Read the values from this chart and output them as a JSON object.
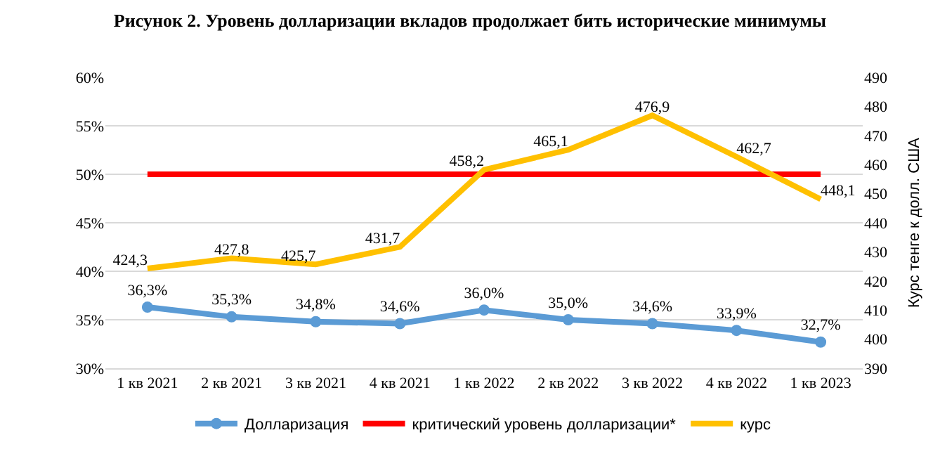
{
  "chart_data": {
    "type": "line",
    "title": "Рисунок 2. Уровень долларизации вкладов продолжает бить исторические минимумы",
    "categories": [
      "1 кв 2021",
      "2 кв 2021",
      "3 кв 2021",
      "4 кв 2021",
      "1 кв 2022",
      "2 кв 2022",
      "3 кв 2022",
      "4 кв 2022",
      "1 кв 2023"
    ],
    "series": [
      {
        "name": "Долларизация",
        "color": "#5b9bd5",
        "marker": "circle",
        "values": [
          36.3,
          35.3,
          34.8,
          34.6,
          36.0,
          35.0,
          34.6,
          33.9,
          32.7
        ],
        "value_labels": [
          "36,3%",
          "35,3%",
          "34,8%",
          "34,6%",
          "36,0%",
          "35,0%",
          "34,6%",
          "33,9%",
          "32,7%"
        ]
      },
      {
        "name": "критический уровень долларизации*",
        "color": "#ff0000",
        "marker": "none",
        "values": [
          50,
          50,
          50,
          50,
          50,
          50,
          50,
          50,
          50
        ]
      },
      {
        "name": "курс",
        "color": "#ffc000",
        "marker": "none",
        "axis": "y2",
        "values": [
          424.3,
          427.8,
          425.7,
          431.7,
          458.2,
          465.1,
          476.9,
          462.7,
          448.1
        ],
        "value_labels": [
          "424,3",
          "427,8",
          "425,7",
          "431,7",
          "458,2",
          "465,1",
          "476,9",
          "462,7",
          "448,1"
        ]
      }
    ],
    "ylim": [
      30,
      60
    ],
    "yticks": [
      {
        "value": 30,
        "label": "30%"
      },
      {
        "value": 35,
        "label": "35%"
      },
      {
        "value": 40,
        "label": "40%"
      },
      {
        "value": 45,
        "label": "45%"
      },
      {
        "value": 50,
        "label": "50%"
      },
      {
        "value": 55,
        "label": "55%"
      },
      {
        "value": 60,
        "label": "60%"
      }
    ],
    "y2lim": [
      390,
      490
    ],
    "y2ticks": [
      390,
      400,
      410,
      420,
      430,
      440,
      450,
      460,
      470,
      480,
      490
    ],
    "y2label": "Курс тенге к долл. США",
    "grid": "y",
    "legend": "bottom",
    "line_style": "solid"
  }
}
